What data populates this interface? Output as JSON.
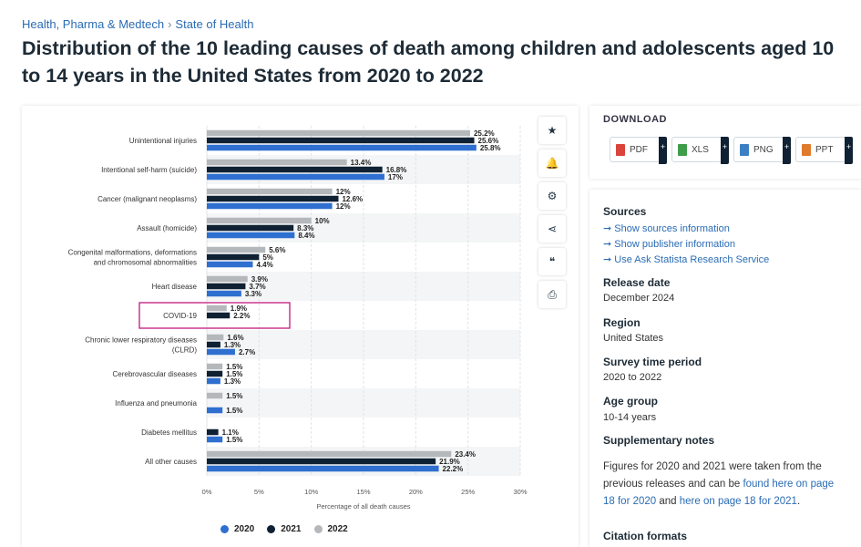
{
  "breadcrumb": {
    "item1": "Health, Pharma & Medtech",
    "sep": "›",
    "item2": "State of Health"
  },
  "title": "Distribution of the 10 leading causes of death among children and adolescents aged 10 to 14 years in the United States from 2020 to 2022",
  "toolbar": {
    "icons": [
      "star-icon",
      "bell-icon",
      "gear-icon",
      "share-icon",
      "quote-icon",
      "print-icon"
    ],
    "glyphs": [
      "★",
      "🔔",
      "⚙",
      "⋖",
      "❝",
      "⎙"
    ]
  },
  "download": {
    "title": "DOWNLOAD",
    "buttons": [
      {
        "label": "PDF",
        "color": "#d9443b"
      },
      {
        "label": "XLS",
        "color": "#3f9d4a"
      },
      {
        "label": "PNG",
        "color": "#3b7fc4"
      },
      {
        "label": "PPT",
        "color": "#e07a2c"
      }
    ],
    "plus": "+"
  },
  "sources": {
    "title": "Sources",
    "links": [
      "Show sources information",
      "Show publisher information",
      "Use Ask Statista Research Service"
    ],
    "arrow": "➞"
  },
  "release": {
    "title": "Release date",
    "value": "December 2024"
  },
  "region": {
    "title": "Region",
    "value": "United States"
  },
  "survey": {
    "title": "Survey time period",
    "value": "2020 to 2022"
  },
  "age": {
    "title": "Age group",
    "value": "10-14 years"
  },
  "supplementary": {
    "title": "Supplementary notes",
    "text1": "Figures for 2020 and 2021 were taken from the previous releases and can be ",
    "link1": "found here on page 18 for 2020",
    "text2": " and ",
    "link2": "here on page 18 for 2021",
    "text3": "."
  },
  "citation": {
    "title": "Citation formats"
  },
  "chart_data": {
    "type": "bar",
    "orientation": "horizontal",
    "categories": [
      "Unintentional injuries",
      "Intentional self-harm (suicide)",
      "Cancer (malignant neoplasms)",
      "Assault (homicide)",
      "Congenital malformations, deformations and chromosomal abnormalities",
      "Heart disease",
      "COVID-19",
      "Chronic lower respiratory diseases (CLRD)",
      "Cerebrovascular diseases",
      "Influenza and pneumonia",
      "Diabetes mellitus",
      "All other causes"
    ],
    "category_lines": [
      [
        "Unintentional injuries"
      ],
      [
        "Intentional self-harm (suicide)"
      ],
      [
        "Cancer (malignant neoplasms)"
      ],
      [
        "Assault (homicide)"
      ],
      [
        "Congenital malformations, deformations",
        "and chromosomal abnormalities"
      ],
      [
        "Heart disease"
      ],
      [
        "COVID-19"
      ],
      [
        "Chronic lower respiratory diseases",
        "(CLRD)"
      ],
      [
        "Cerebrovascular diseases"
      ],
      [
        "Influenza and pneumonia"
      ],
      [
        "Diabetes mellitus"
      ],
      [
        "All other causes"
      ]
    ],
    "series": [
      {
        "name": "2022",
        "color": "#b5b8bb",
        "values": [
          25.2,
          13.4,
          12,
          10,
          5.6,
          3.9,
          1.9,
          1.6,
          1.5,
          1.5,
          null,
          23.4
        ],
        "labels": [
          "25.2%",
          "13.4%",
          "12%",
          "10%",
          "5.6%",
          "3.9%",
          "1.9%",
          "1.6%",
          "1.5%",
          "1.5%",
          "",
          "23.4%"
        ]
      },
      {
        "name": "2021",
        "color": "#0f2133",
        "values": [
          25.6,
          16.8,
          12.6,
          8.3,
          5,
          3.7,
          2.2,
          1.3,
          1.5,
          null,
          1.1,
          21.9
        ],
        "labels": [
          "25.6%",
          "16.8%",
          "12.6%",
          "8.3%",
          "5%",
          "3.7%",
          "2.2%",
          "1.3%",
          "1.5%",
          "",
          "1.1%",
          "21.9%"
        ]
      },
      {
        "name": "2020",
        "color": "#2f6fd0",
        "values": [
          25.8,
          17,
          12,
          8.4,
          4.4,
          3.3,
          null,
          2.7,
          1.3,
          1.5,
          1.5,
          22.2
        ],
        "labels": [
          "25.8%",
          "17%",
          "12%",
          "8.4%",
          "4.4%",
          "3.3%",
          "",
          "2.7%",
          "1.3%",
          "1.5%",
          "1.5%",
          "22.2%"
        ]
      }
    ],
    "xlim": [
      0,
      30
    ],
    "xticks": [
      "0%",
      "5%",
      "10%",
      "15%",
      "20%",
      "25%",
      "30%"
    ],
    "xlabel": "Percentage of all death causes",
    "legend": [
      {
        "name": "2020",
        "color": "#2f6fd0"
      },
      {
        "name": "2021",
        "color": "#0f2133"
      },
      {
        "name": "2022",
        "color": "#b5b8bb"
      }
    ],
    "legend_position": "bottom",
    "highlight_category": "COVID-19",
    "highlight_color": "#c2187c"
  }
}
